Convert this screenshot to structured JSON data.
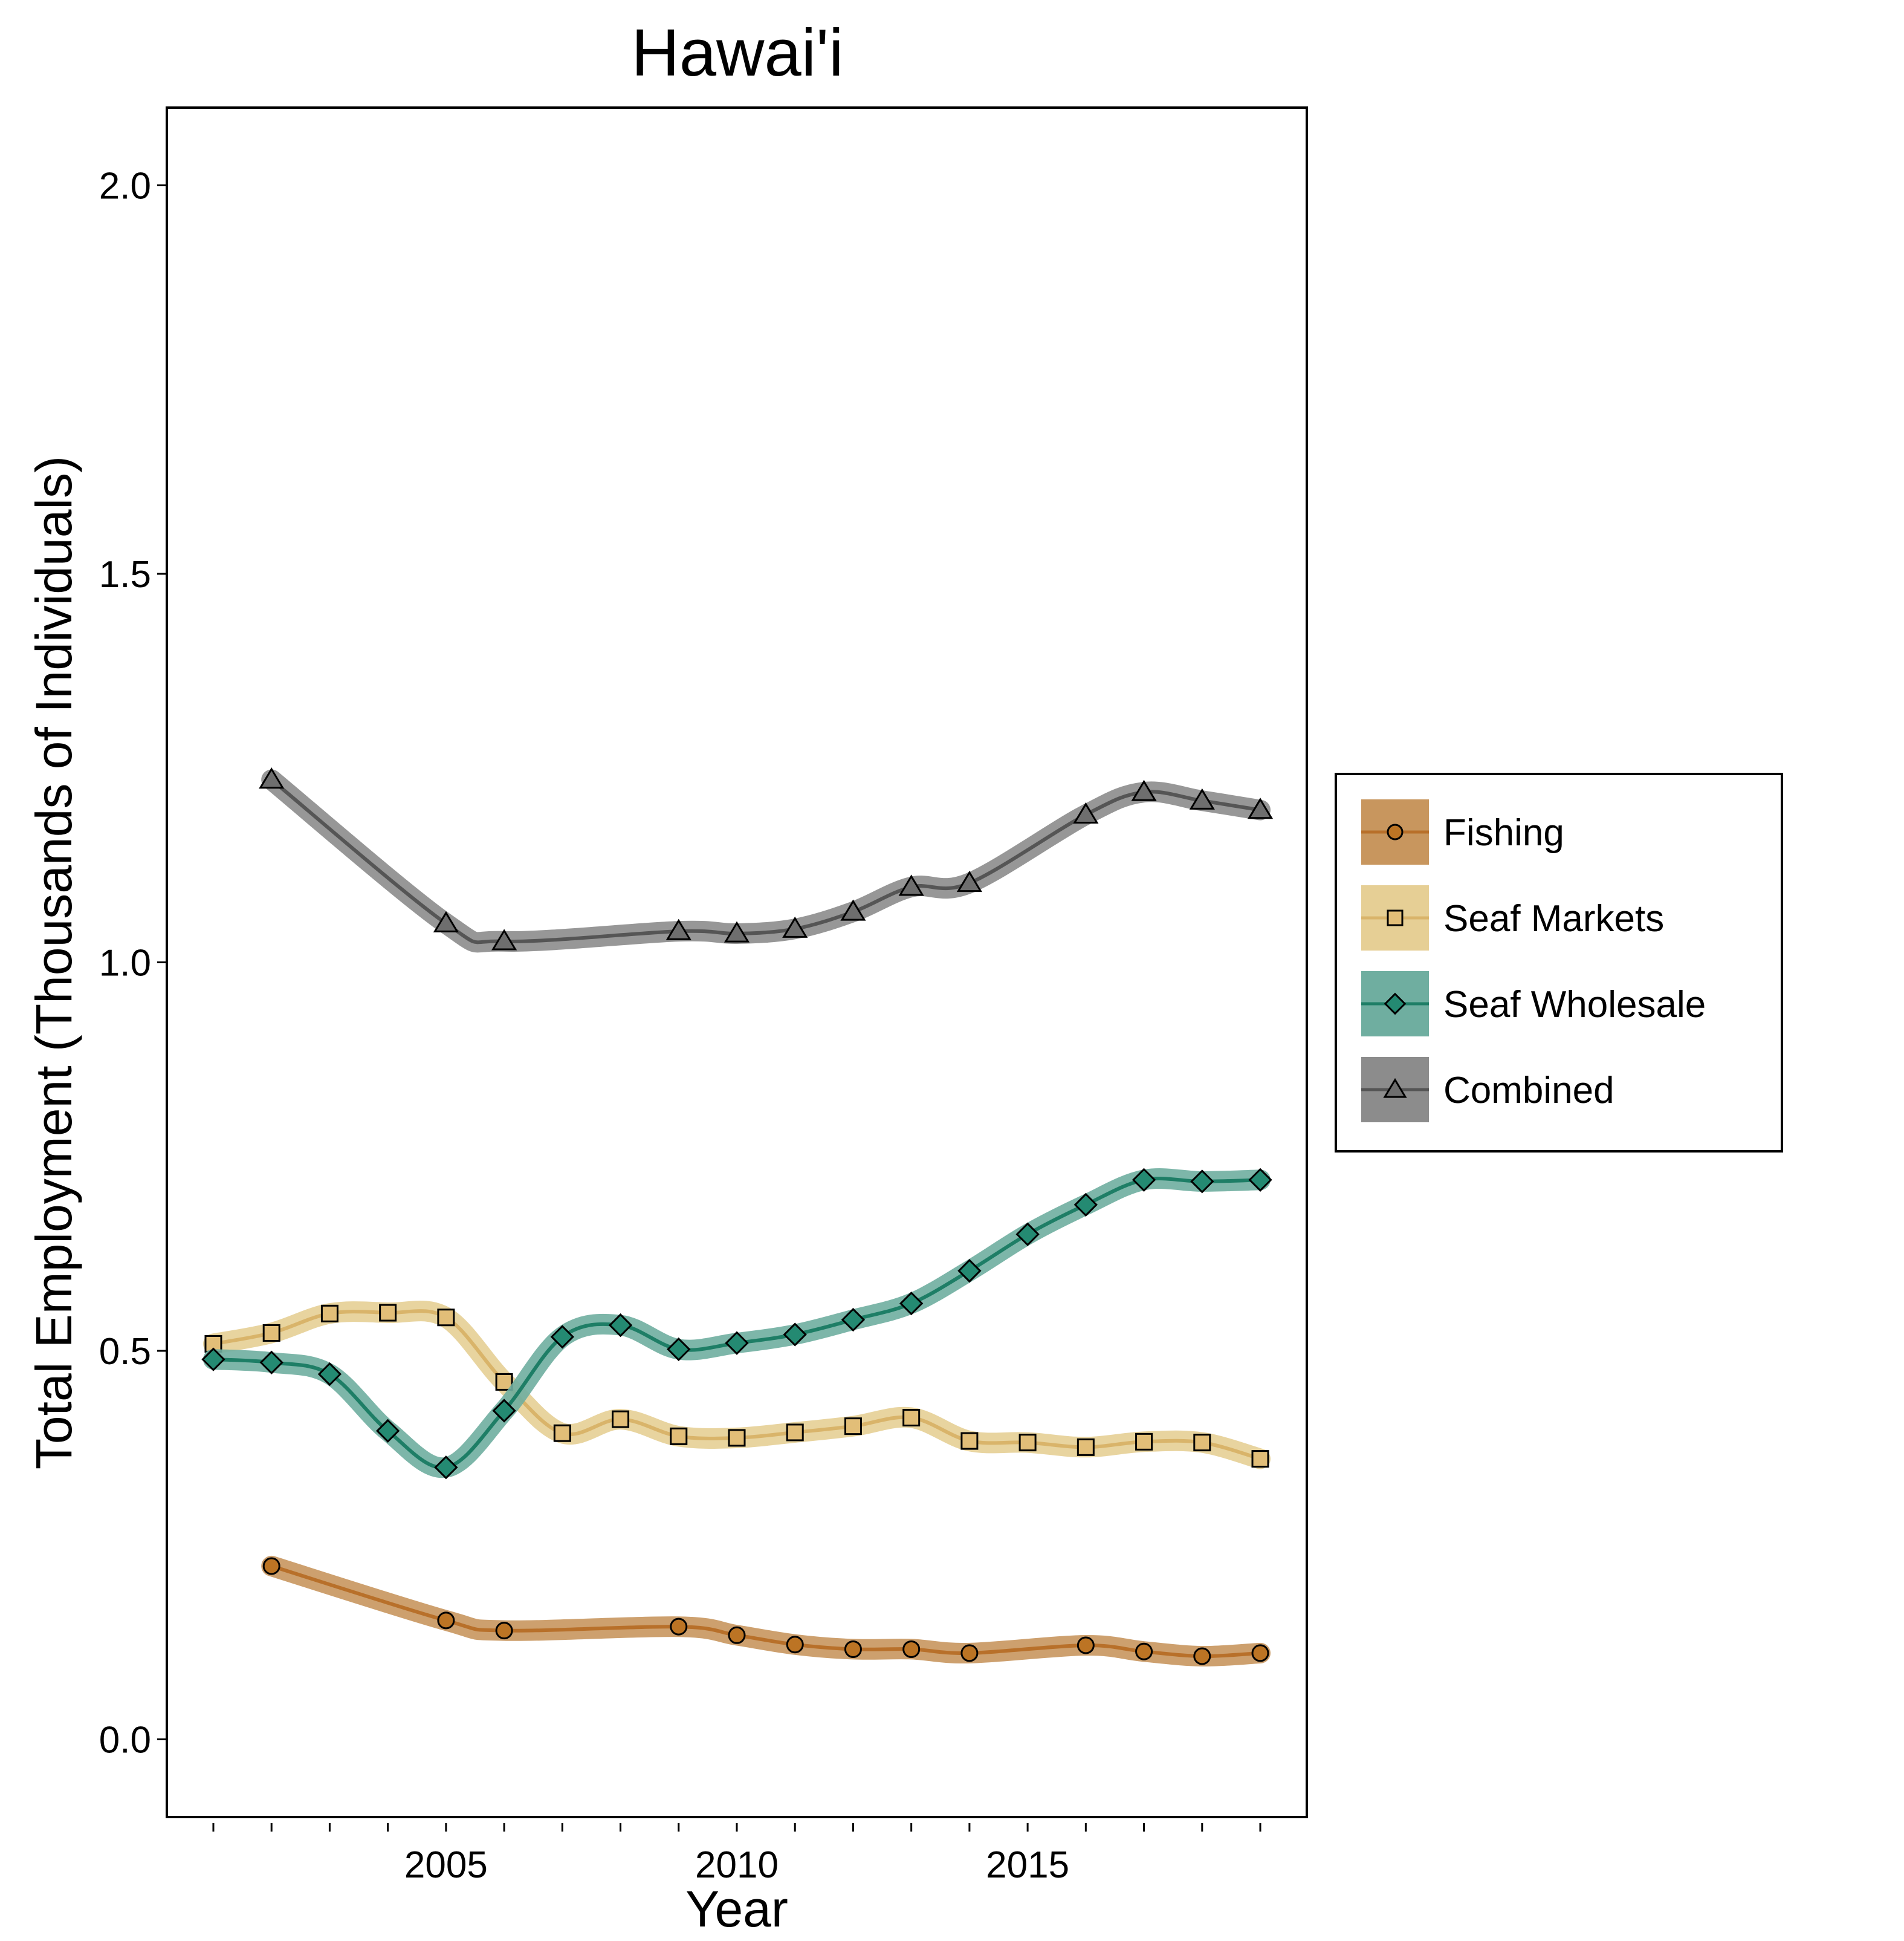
{
  "chart_data": {
    "type": "line",
    "title": "Hawai'i",
    "xlabel": "Year",
    "ylabel": "Total Employment (Thousands of Individuals)",
    "xlim": [
      2000.2,
      2019.8
    ],
    "ylim": [
      -0.1,
      2.1
    ],
    "x_ticks": [
      2001,
      2002,
      2003,
      2004,
      2005,
      2006,
      2007,
      2008,
      2009,
      2010,
      2011,
      2012,
      2013,
      2014,
      2015,
      2016,
      2017,
      2018,
      2019
    ],
    "x_tick_labels": [
      {
        "x": 2005,
        "label": "2005"
      },
      {
        "x": 2010,
        "label": "2010"
      },
      {
        "x": 2015,
        "label": "2015"
      }
    ],
    "y_ticks": [
      {
        "y": 0.0,
        "label": "0.0"
      },
      {
        "y": 0.5,
        "label": "0.5"
      },
      {
        "y": 1.0,
        "label": "1.0"
      },
      {
        "y": 1.5,
        "label": "1.5"
      },
      {
        "y": 2.0,
        "label": "2.0"
      }
    ],
    "grid": false,
    "legend_position": "right",
    "series": [
      {
        "name": "Fishing",
        "marker": "circle",
        "line_color": "#B8702A",
        "band_color": "#C8965E",
        "marker_color": "#BC7424",
        "x": [
          2002,
          2005,
          2006,
          2009,
          2010,
          2011,
          2012,
          2013,
          2014,
          2016,
          2017,
          2018,
          2019
        ],
        "values": [
          0.223,
          0.153,
          0.14,
          0.145,
          0.134,
          0.122,
          0.116,
          0.116,
          0.111,
          0.121,
          0.113,
          0.107,
          0.111
        ]
      },
      {
        "name": "Seaf Markets",
        "marker": "square",
        "line_color": "#D9B46A",
        "band_color": "#E6CF95",
        "marker_color": "#E2BE78",
        "x": [
          2001,
          2002,
          2003,
          2004,
          2005,
          2006,
          2007,
          2008,
          2009,
          2010,
          2011,
          2012,
          2013,
          2014,
          2015,
          2016,
          2017,
          2018,
          2019
        ],
        "values": [
          0.509,
          0.523,
          0.548,
          0.549,
          0.543,
          0.46,
          0.394,
          0.412,
          0.39,
          0.388,
          0.395,
          0.403,
          0.414,
          0.384,
          0.382,
          0.376,
          0.383,
          0.382,
          0.361
        ]
      },
      {
        "name": "Seaf Wholesale",
        "marker": "diamond",
        "line_color": "#1E7E66",
        "band_color": "#6FAEA0",
        "marker_color": "#248A72",
        "x": [
          2001,
          2002,
          2003,
          2004,
          2005,
          2006,
          2007,
          2008,
          2009,
          2010,
          2011,
          2012,
          2013,
          2014,
          2015,
          2016,
          2017,
          2018,
          2019
        ],
        "values": [
          0.489,
          0.485,
          0.47,
          0.397,
          0.35,
          0.423,
          0.518,
          0.533,
          0.502,
          0.51,
          0.521,
          0.54,
          0.561,
          0.603,
          0.65,
          0.688,
          0.72,
          0.718,
          0.72
        ]
      },
      {
        "name": "Combined",
        "marker": "triangle",
        "line_color": "#555555",
        "band_color": "#8C8C8C",
        "marker_color": "#6E6E6E",
        "x": [
          2002,
          2005,
          2006,
          2009,
          2010,
          2011,
          2012,
          2013,
          2014,
          2016,
          2017,
          2018,
          2019
        ],
        "values": [
          1.235,
          1.05,
          1.027,
          1.04,
          1.037,
          1.043,
          1.065,
          1.097,
          1.102,
          1.19,
          1.219,
          1.208,
          1.196
        ]
      }
    ]
  }
}
